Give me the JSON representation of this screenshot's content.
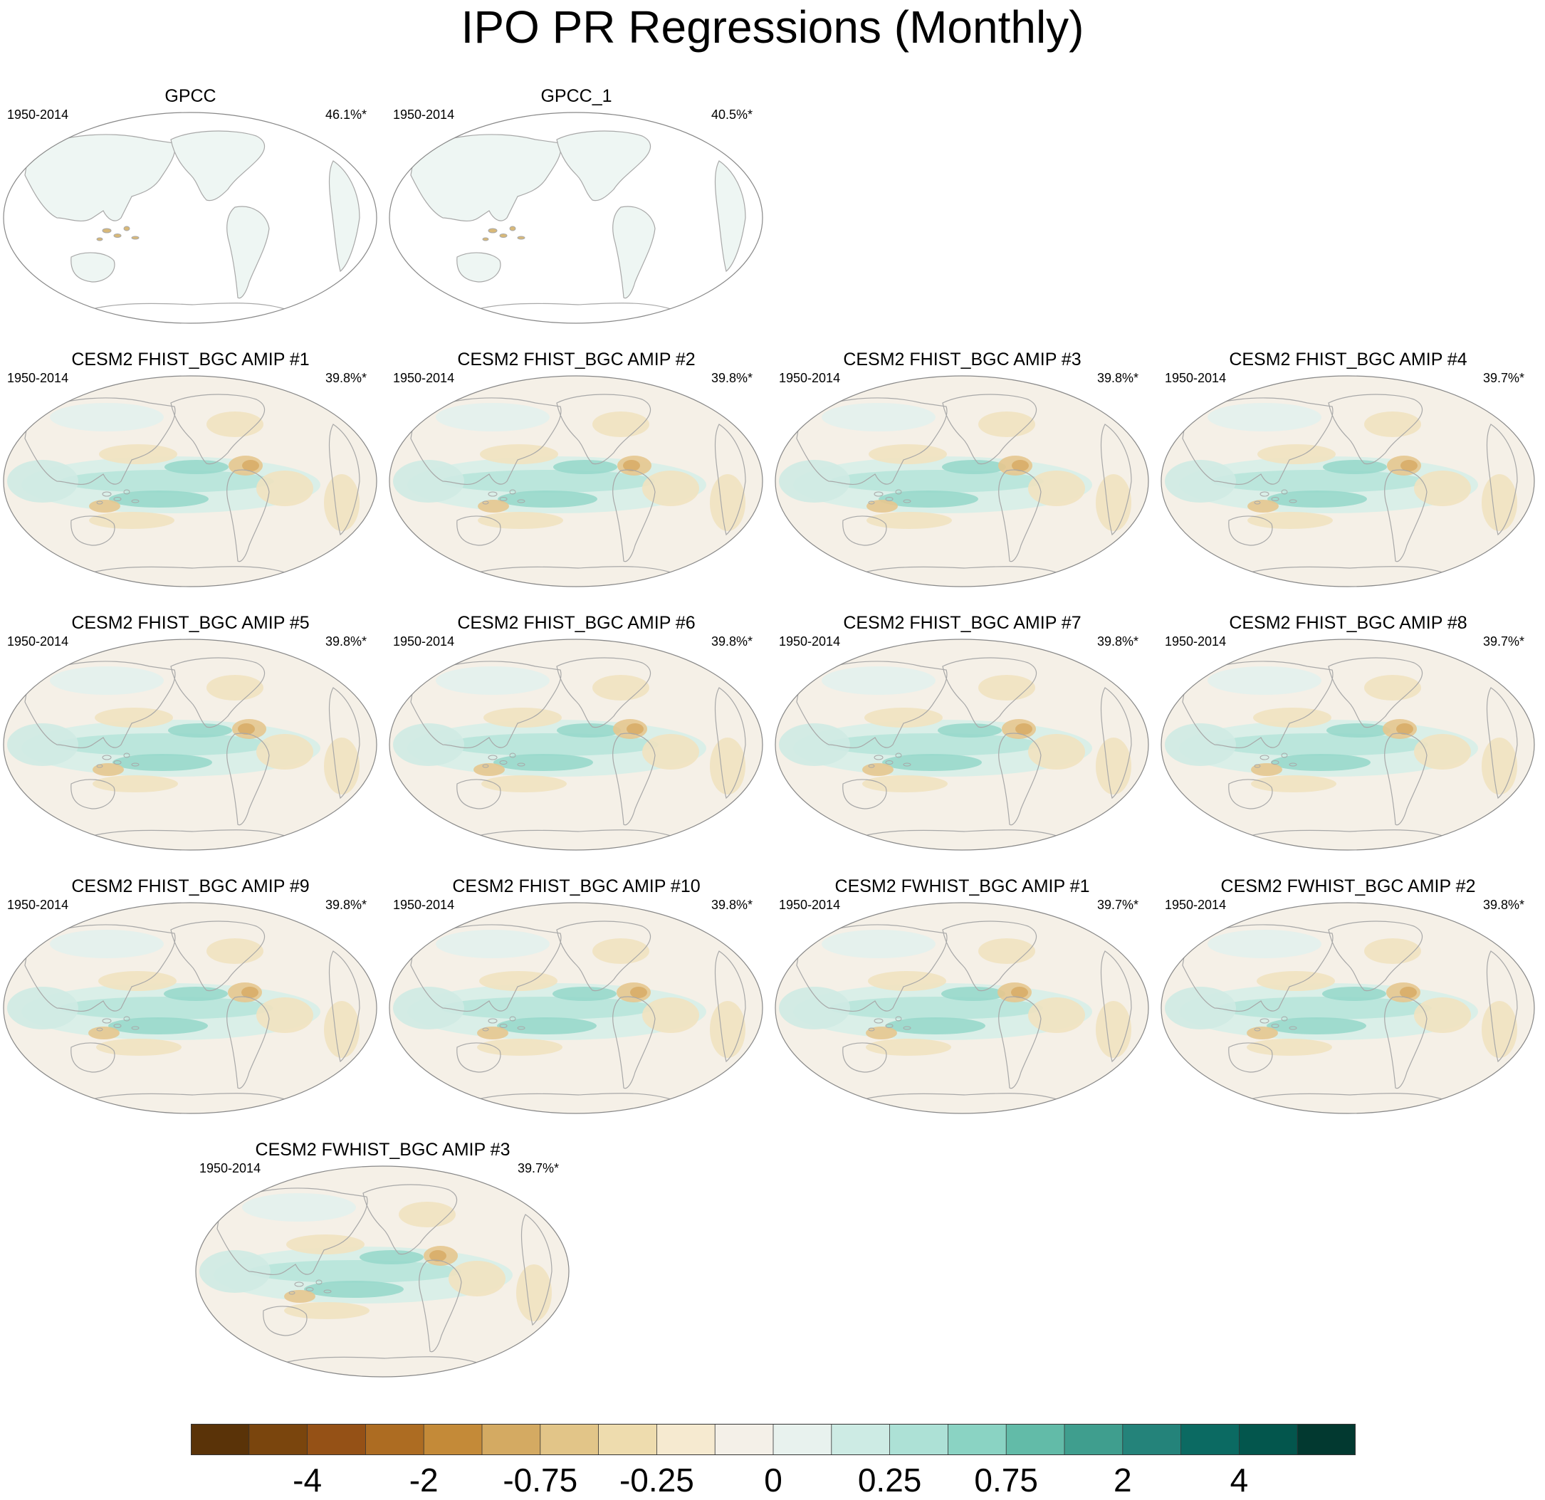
{
  "title": "IPO PR Regressions (Monthly)",
  "chart_data": {
    "type": "heatmap",
    "title": "IPO PR Regressions (Monthly)",
    "description_kind": "small-multiple global maps of precipitation regressed on IPO",
    "panels": [
      {
        "name": "GPCC",
        "period": "1950-2014",
        "variance": "46.1%*",
        "style": "obs"
      },
      {
        "name": "GPCC_1",
        "period": "1950-2014",
        "variance": "40.5%*",
        "style": "obs"
      },
      {
        "name": "CESM2 FHIST_BGC AMIP #1",
        "period": "1950-2014",
        "variance": "39.8%*",
        "style": "model"
      },
      {
        "name": "CESM2 FHIST_BGC AMIP #2",
        "period": "1950-2014",
        "variance": "39.8%*",
        "style": "model"
      },
      {
        "name": "CESM2 FHIST_BGC AMIP #3",
        "period": "1950-2014",
        "variance": "39.8%*",
        "style": "model"
      },
      {
        "name": "CESM2 FHIST_BGC AMIP #4",
        "period": "1950-2014",
        "variance": "39.7%*",
        "style": "model"
      },
      {
        "name": "CESM2 FHIST_BGC AMIP #5",
        "period": "1950-2014",
        "variance": "39.8%*",
        "style": "model"
      },
      {
        "name": "CESM2 FHIST_BGC AMIP #6",
        "period": "1950-2014",
        "variance": "39.8%*",
        "style": "model"
      },
      {
        "name": "CESM2 FHIST_BGC AMIP #7",
        "period": "1950-2014",
        "variance": "39.8%*",
        "style": "model"
      },
      {
        "name": "CESM2 FHIST_BGC AMIP #8",
        "period": "1950-2014",
        "variance": "39.7%*",
        "style": "model"
      },
      {
        "name": "CESM2 FHIST_BGC AMIP #9",
        "period": "1950-2014",
        "variance": "39.8%*",
        "style": "model"
      },
      {
        "name": "CESM2 FHIST_BGC AMIP #10",
        "period": "1950-2014",
        "variance": "39.8%*",
        "style": "model"
      },
      {
        "name": "CESM2 FWHIST_BGC AMIP #1",
        "period": "1950-2014",
        "variance": "39.7%*",
        "style": "model"
      },
      {
        "name": "CESM2 FWHIST_BGC AMIP #2",
        "period": "1950-2014",
        "variance": "39.8%*",
        "style": "model"
      },
      {
        "name": "CESM2 FWHIST_BGC AMIP #3",
        "period": "1950-2014",
        "variance": "39.7%*",
        "style": "model"
      }
    ],
    "colorbar": {
      "colors": [
        "#5a3308",
        "#7a450d",
        "#955116",
        "#ad6c22",
        "#c48a38",
        "#d4aa62",
        "#e2c588",
        "#eedcae",
        "#f6ead0",
        "#f4f0e8",
        "#e8f2ee",
        "#cdebe4",
        "#ade1d6",
        "#8ad3c3",
        "#62bba8",
        "#3f9e8e",
        "#24837a",
        "#0b6a62",
        "#03564d",
        "#023930"
      ],
      "tick_labels": [
        "-4",
        "-2",
        "-0.75",
        "-0.25",
        "0",
        "0.25",
        "0.75",
        "2",
        "4"
      ],
      "tick_boundaries": [
        2,
        4,
        6,
        8,
        10,
        12,
        14,
        16,
        18
      ]
    }
  }
}
